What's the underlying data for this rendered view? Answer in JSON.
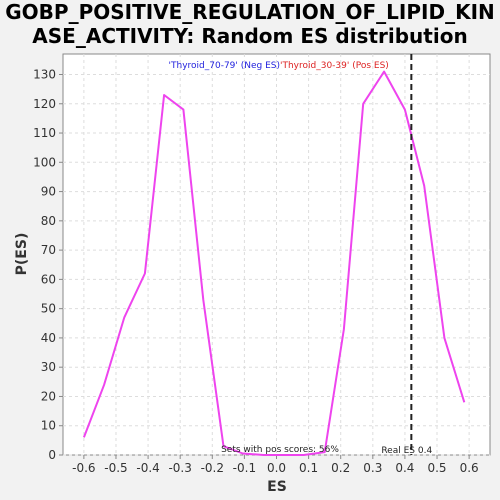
{
  "title_lines": [
    "GOBP_POSITIVE_REGULATION_OF_LIPID_KIN",
    "ASE_ACTIVITY: Random ES distribution"
  ],
  "chart_data": {
    "type": "line",
    "xlabel": "ES",
    "ylabel": "P(ES)",
    "xlim": [
      -0.665,
      0.665
    ],
    "ylim": [
      0,
      137
    ],
    "x_ticks": [
      -0.6,
      -0.5,
      -0.4,
      -0.3,
      -0.2,
      -0.1,
      0.0,
      0.1,
      0.2,
      0.3,
      0.4,
      0.5,
      0.6
    ],
    "x_tick_labels": [
      "-0.6",
      "-0.5",
      "-0.4",
      "-0.3",
      "-0.2",
      "-0.1",
      "0.0",
      "0.1",
      "0.2",
      "0.3",
      "0.4",
      "0.5",
      "0.6"
    ],
    "y_ticks": [
      0,
      10,
      20,
      30,
      40,
      50,
      60,
      70,
      80,
      90,
      100,
      110,
      120,
      130
    ],
    "y_tick_labels": [
      "0",
      "10",
      "20",
      "30",
      "40",
      "50",
      "60",
      "70",
      "80",
      "90",
      "100",
      "110",
      "120",
      "130"
    ],
    "grid": true,
    "series": [
      {
        "color": "#ee44ee",
        "points": [
          [
            -0.6,
            6
          ],
          [
            -0.537,
            24
          ],
          [
            -0.474,
            47
          ],
          [
            -0.41,
            62
          ],
          [
            -0.35,
            123
          ],
          [
            -0.29,
            118
          ],
          [
            -0.228,
            53
          ],
          [
            -0.165,
            3
          ],
          [
            -0.105,
            0.5
          ],
          [
            -0.04,
            0
          ],
          [
            0.02,
            0
          ],
          [
            0.085,
            0
          ],
          [
            0.15,
            1
          ],
          [
            0.21,
            43
          ],
          [
            0.27,
            120
          ],
          [
            0.335,
            131
          ],
          [
            0.4,
            118
          ],
          [
            0.46,
            92
          ],
          [
            0.523,
            40
          ],
          [
            0.585,
            18
          ]
        ]
      }
    ],
    "legend": [
      {
        "label": "'Thyroid_70-79' (Neg ES)",
        "color": "#2222dd"
      },
      {
        "label": "'Thyroid_30-39' (Pos ES)",
        "color": "#dd2222"
      }
    ],
    "real_es": {
      "x": 0.42,
      "label": "Real ES 0.4"
    },
    "annotation": "Sets with pos scores: 56%"
  }
}
